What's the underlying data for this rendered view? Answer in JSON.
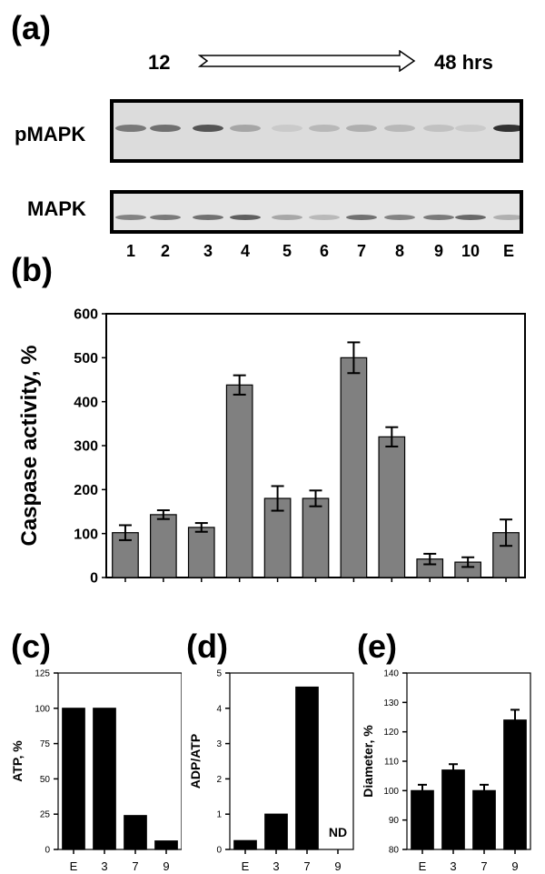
{
  "labels": {
    "a": "(a)",
    "b": "(b)",
    "c": "(c)",
    "d": "(d)",
    "e": "(e)"
  },
  "timeline": {
    "start": "12",
    "end": "48 hrs"
  },
  "blots": {
    "pmapk_label": "pMAPK",
    "mapk_label": "MAPK",
    "lanes": [
      "1",
      "2",
      "3",
      "4",
      "5",
      "6",
      "7",
      "8",
      "9",
      "10",
      "E"
    ],
    "pmapk_intensity": [
      0.55,
      0.6,
      0.75,
      0.3,
      0.1,
      0.2,
      0.25,
      0.2,
      0.15,
      0.1,
      0.95
    ],
    "mapk_intensity": [
      0.5,
      0.55,
      0.6,
      0.7,
      0.3,
      0.2,
      0.6,
      0.5,
      0.55,
      0.65,
      0.25
    ]
  },
  "chart_data": [
    {
      "id": "b",
      "type": "bar",
      "categories": [
        "1",
        "2",
        "3",
        "4",
        "5",
        "6",
        "7",
        "8",
        "9",
        "10",
        "E"
      ],
      "values": [
        102,
        143,
        114,
        438,
        180,
        180,
        500,
        320,
        42,
        35,
        102
      ],
      "errors": [
        17,
        10,
        10,
        22,
        28,
        18,
        35,
        22,
        12,
        11,
        30
      ],
      "ylabel": "Caspase activity, %",
      "ylim": [
        0,
        600
      ],
      "yticks": [
        0,
        100,
        200,
        300,
        400,
        500,
        600
      ],
      "bar_color": "#808080"
    },
    {
      "id": "c",
      "type": "bar",
      "categories": [
        "E",
        "3",
        "7",
        "9"
      ],
      "values": [
        100,
        100,
        24,
        6
      ],
      "ylabel": "ATP, %",
      "ylim": [
        0,
        125
      ],
      "yticks": [
        0,
        25,
        50,
        75,
        100,
        125
      ],
      "bar_color": "#000000"
    },
    {
      "id": "d",
      "type": "bar",
      "categories": [
        "E",
        "3",
        "7",
        "9"
      ],
      "values": [
        0.25,
        1.0,
        4.6,
        null
      ],
      "annotations": [
        "",
        "",
        "",
        "ND"
      ],
      "ylabel": "ADP/ATP",
      "ylim": [
        0,
        5
      ],
      "yticks": [
        0,
        1,
        2,
        3,
        4,
        5
      ],
      "bar_color": "#000000"
    },
    {
      "id": "e",
      "type": "bar",
      "categories": [
        "E",
        "3",
        "7",
        "9"
      ],
      "values": [
        100,
        107,
        100,
        124
      ],
      "errors": [
        2,
        2,
        2,
        3.5
      ],
      "ylabel": "Diameter, %",
      "ylim": [
        80,
        140
      ],
      "yticks": [
        80,
        90,
        100,
        110,
        120,
        130,
        140
      ],
      "bar_color": "#000000"
    }
  ]
}
